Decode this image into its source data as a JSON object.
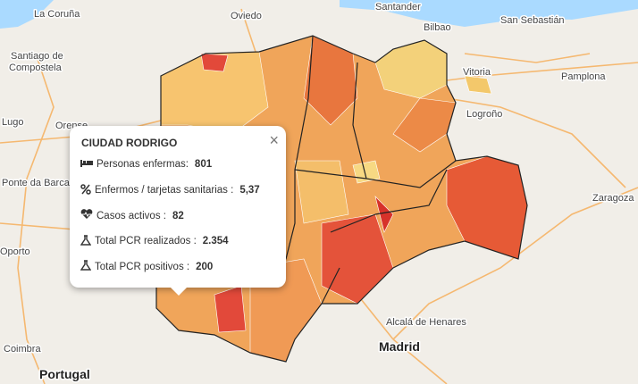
{
  "map_labels": [
    "La Coruña",
    "Oviedo",
    "Santander",
    "Bilbao",
    "San Sebastián",
    "Santiago de",
    "Compostela",
    "Lugo",
    "Vitoria",
    "Pamplona",
    "Logroño",
    "Orense",
    "Ponte da Barca",
    "Zaragoza",
    "Oporto",
    "Coimbra",
    "Portugal",
    "Alcalá de Henares",
    "Madrid"
  ],
  "popup": {
    "title": "CIUDAD RODRIGO",
    "rows": [
      {
        "label": "Personas enfermas:",
        "value": "801"
      },
      {
        "label": "Enfermos / tarjetas sanitarias :",
        "value": "5,37"
      },
      {
        "label": "Casos activos :",
        "value": "82"
      },
      {
        "label": "Total PCR realizados :",
        "value": "2.354"
      },
      {
        "label": "Total PCR positivos :",
        "value": "200"
      }
    ]
  }
}
